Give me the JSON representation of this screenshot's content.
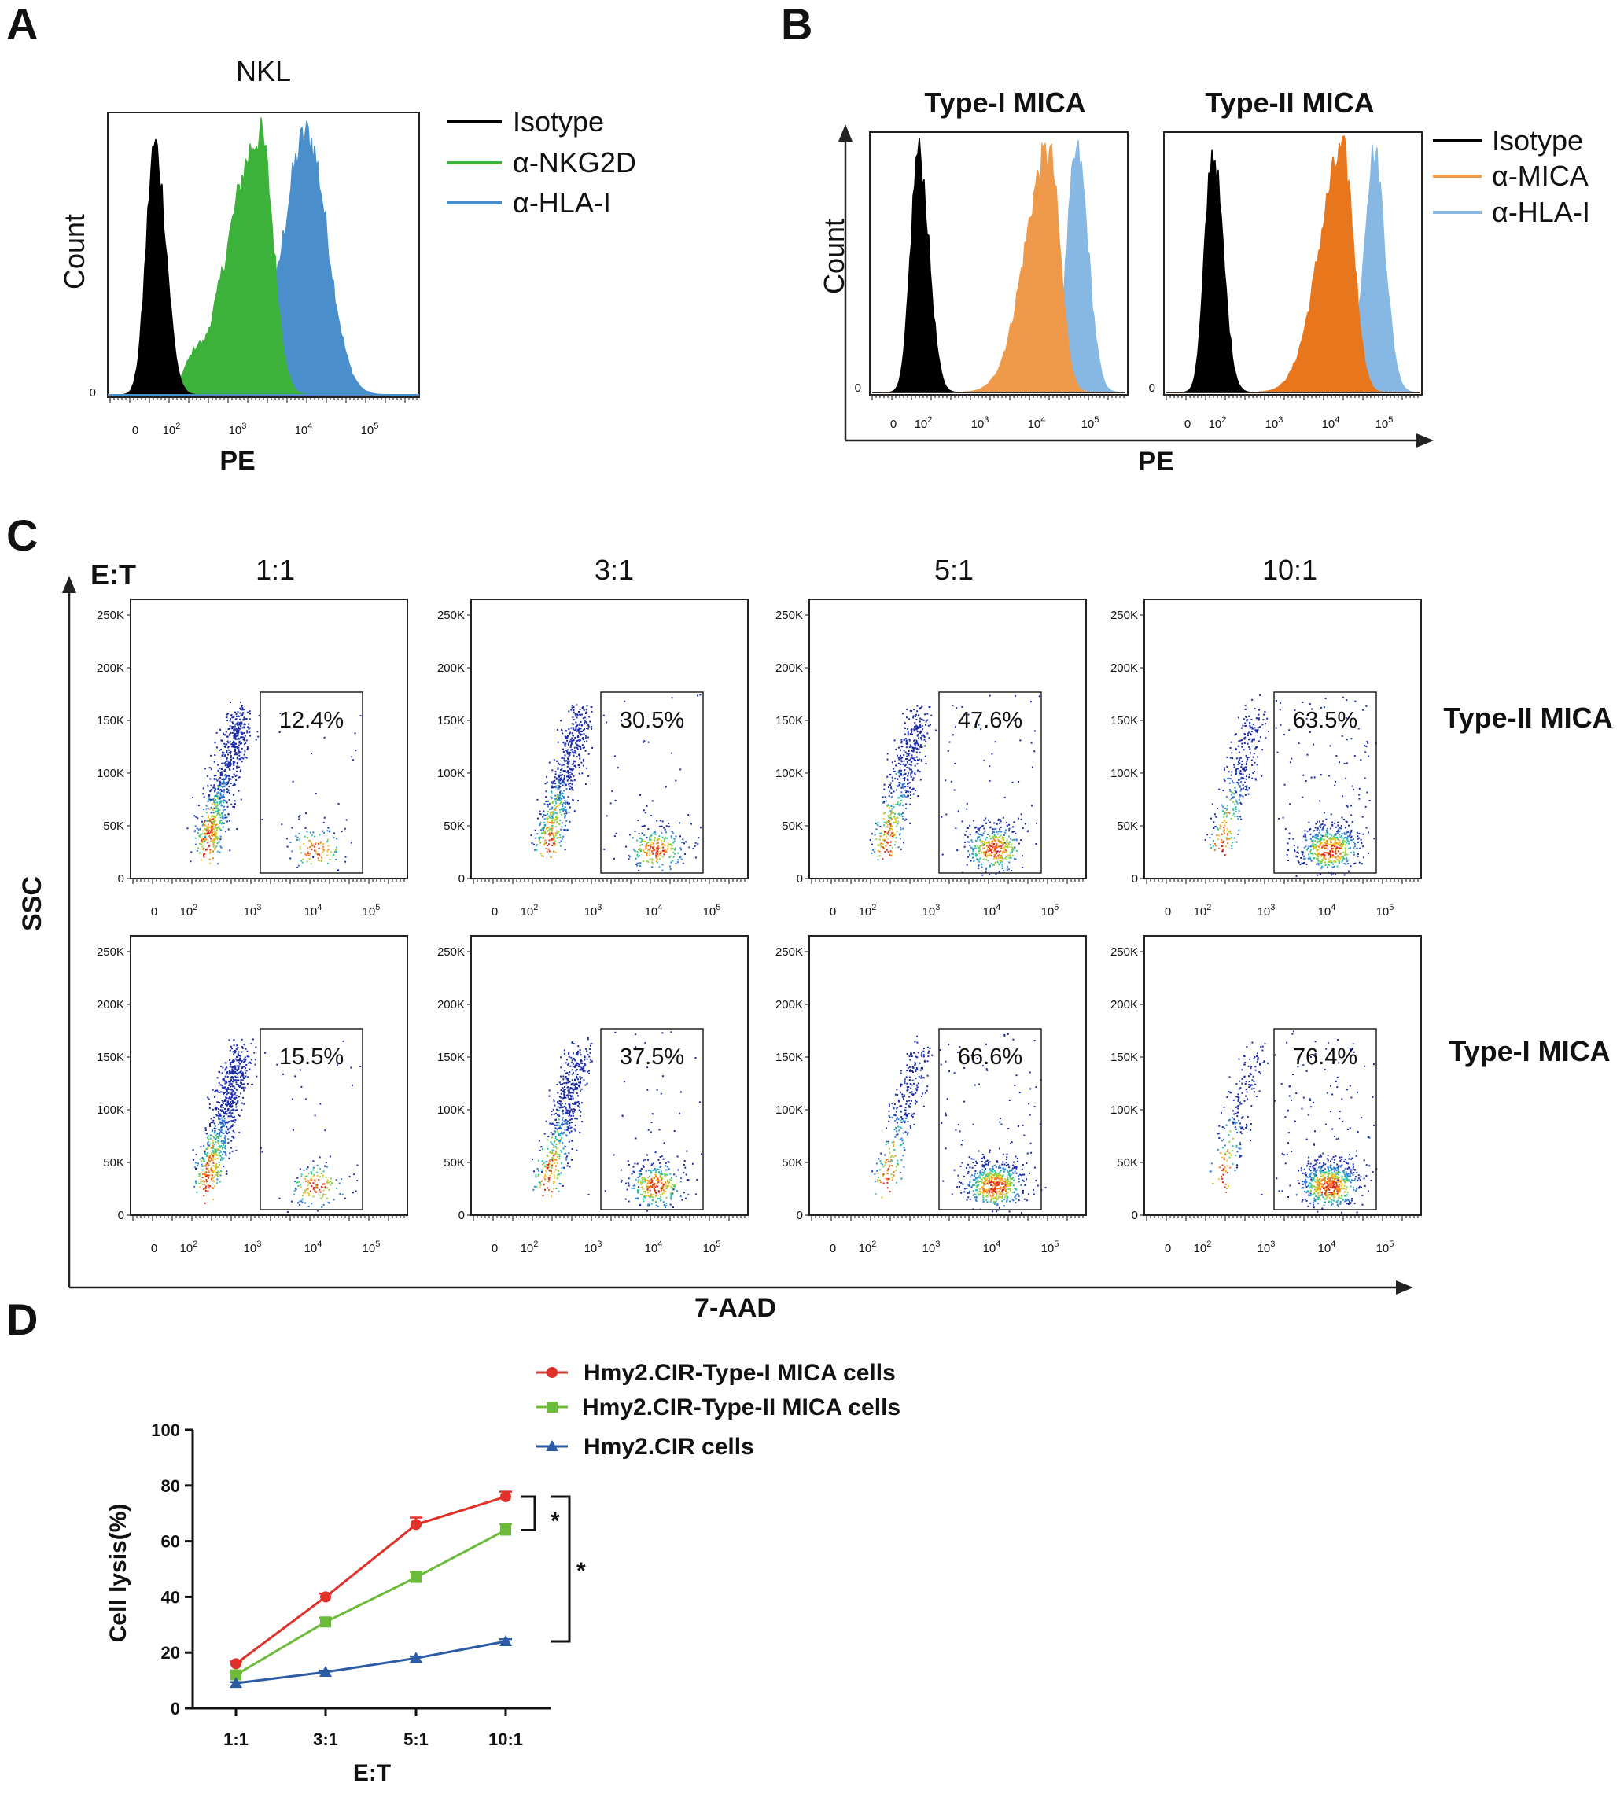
{
  "colors": {
    "isotype": "#000000",
    "nkg2d": "#3cb23a",
    "hla_a": "#4a8fcb",
    "mica": "#ef9a4a",
    "mica_dark": "#e8761d",
    "hla_b": "#86b8e3",
    "type1_line": "#e0302a",
    "type2_line": "#6dbb3a",
    "cir_line": "#2c5ba6"
  },
  "chart_data": [
    {
      "panel": "A",
      "type": "histogram",
      "title": "NKL",
      "xlabel": "PE",
      "ylabel": "Count",
      "x_scale": "biexponential",
      "xticks": [
        "0",
        "10",
        "10",
        "10",
        "10"
      ],
      "xtick_exp": [
        "",
        "2",
        "3",
        "4",
        "5"
      ],
      "ytick": "0",
      "legend": [
        "Isotype",
        "α-NKG2D",
        "α-HLA-I"
      ],
      "series": [
        {
          "name": "Isotype",
          "peak_log10": 1.75,
          "filled": true
        },
        {
          "name": "α-NKG2D",
          "peak_log10": 3.35,
          "filled": true
        },
        {
          "name": "α-HLA-I",
          "peak_log10": 4.05,
          "filled": true
        }
      ]
    },
    {
      "panel": "B",
      "type": "histogram",
      "xlabel": "PE",
      "ylabel": "Count",
      "legend": [
        "Isotype",
        "α-MICA",
        "α-HLA-I"
      ],
      "plots": [
        {
          "title": "Type-I MICA",
          "peaks_log10": [
            1.75,
            4.05,
            4.55
          ]
        },
        {
          "title": "Type-II MICA",
          "peaks_log10": [
            1.75,
            4.05,
            4.6
          ]
        }
      ],
      "xticks": [
        "0",
        "10",
        "10",
        "10",
        "10"
      ],
      "xtick_exp": [
        "",
        "2",
        "3",
        "4",
        "5"
      ],
      "ytick": "0"
    },
    {
      "panel": "C",
      "type": "scatter",
      "row_label_prefix": "E:T",
      "xlabel": "7-AAD",
      "ylabel": "SSC",
      "columns": [
        "1:1",
        "3:1",
        "5:1",
        "10:1"
      ],
      "rows": [
        "Type-II MICA",
        "Type-I MICA"
      ],
      "gate_percent": [
        [
          "12.4%",
          "30.5%",
          "47.6%",
          "63.5%"
        ],
        [
          "15.5%",
          "37.5%",
          "66.6%",
          "76.4%"
        ]
      ],
      "yticks": [
        "250K",
        "200K",
        "150K",
        "100K",
        "50K",
        "0"
      ],
      "xticks": [
        "0",
        "10",
        "10",
        "10",
        "10"
      ],
      "xtick_exp": [
        "",
        "2",
        "3",
        "4",
        "5"
      ]
    },
    {
      "panel": "D",
      "type": "line",
      "xlabel": "E:T",
      "ylabel": "Cell lysis(%)",
      "categories": [
        "1:1",
        "3:1",
        "5:1",
        "10:1"
      ],
      "ylim": [
        0,
        100
      ],
      "yticks": [
        "0",
        "20",
        "40",
        "60",
        "80",
        "100"
      ],
      "series": [
        {
          "name": "Hmy2.CIR-Type-I MICA cells",
          "marker": "circle",
          "values": [
            16,
            40,
            66,
            76
          ],
          "errors": [
            0.8,
            1.2,
            2.5,
            1.8
          ]
        },
        {
          "name": "Hmy2.CIR-Type-II MICA cells",
          "marker": "square",
          "values": [
            12,
            31,
            47,
            64
          ],
          "errors": [
            0.8,
            1.5,
            2.0,
            2.2
          ]
        },
        {
          "name": "Hmy2.CIR cells",
          "marker": "triangle",
          "values": [
            9,
            13,
            18,
            24
          ],
          "errors": [
            0.4,
            0.5,
            0.6,
            0.8
          ]
        }
      ],
      "significance": [
        "*",
        "*"
      ]
    }
  ]
}
